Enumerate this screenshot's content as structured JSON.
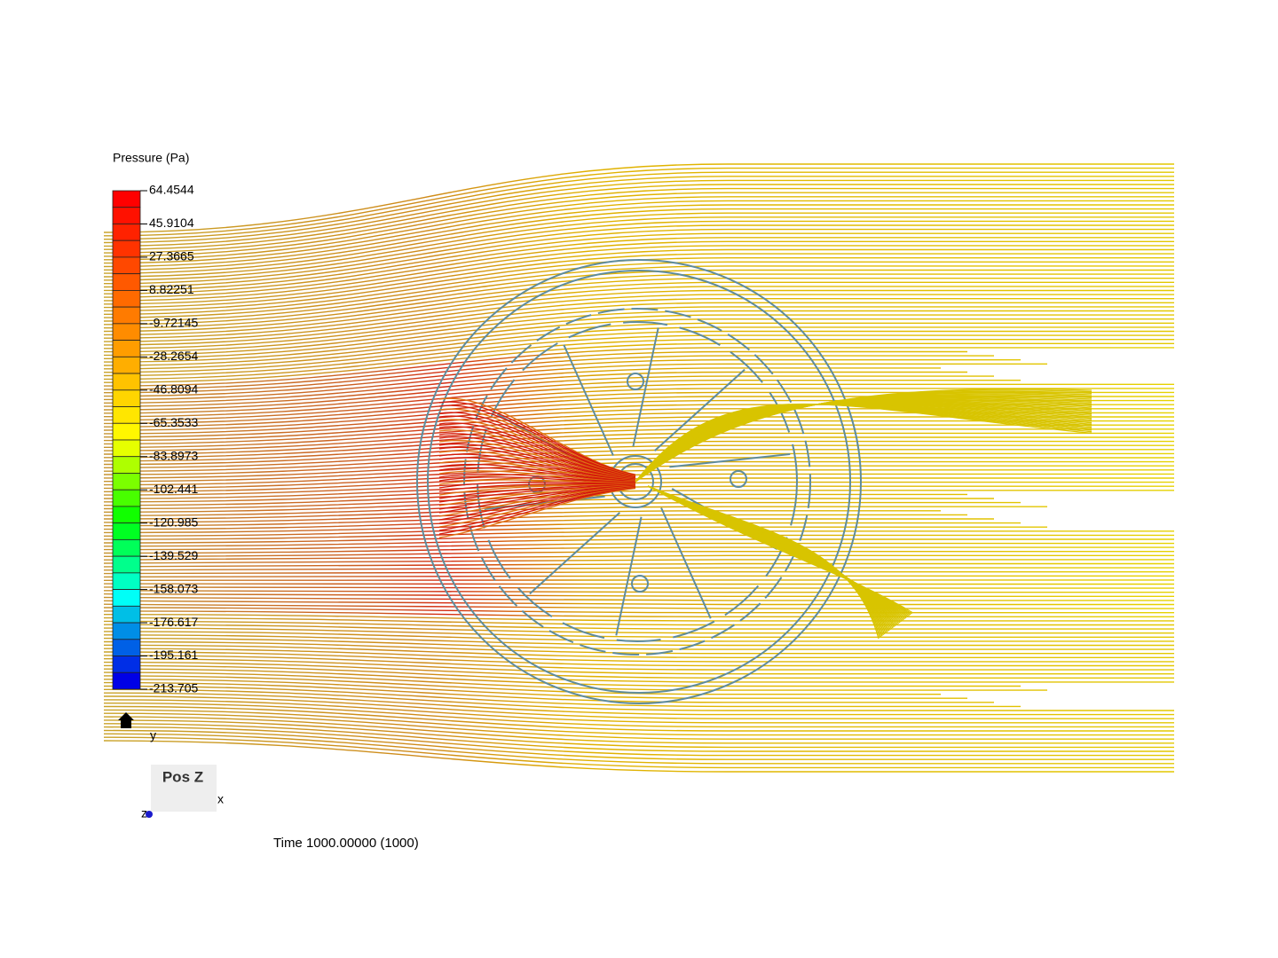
{
  "legend": {
    "title": "Pressure (Pa)",
    "labels": [
      "64.4544",
      "45.9104",
      "27.3665",
      "8.82251",
      "-9.72145",
      "-28.2654",
      "-46.8094",
      "-65.3533",
      "-83.8973",
      "-102.441",
      "-120.985",
      "-139.529",
      "-158.073",
      "-176.617",
      "-195.161",
      "-213.705"
    ]
  },
  "orientation": {
    "y": "y",
    "x": "x",
    "z": "z",
    "view": "Pos Z"
  },
  "time": "Time 1000.00000 (1000)"
}
